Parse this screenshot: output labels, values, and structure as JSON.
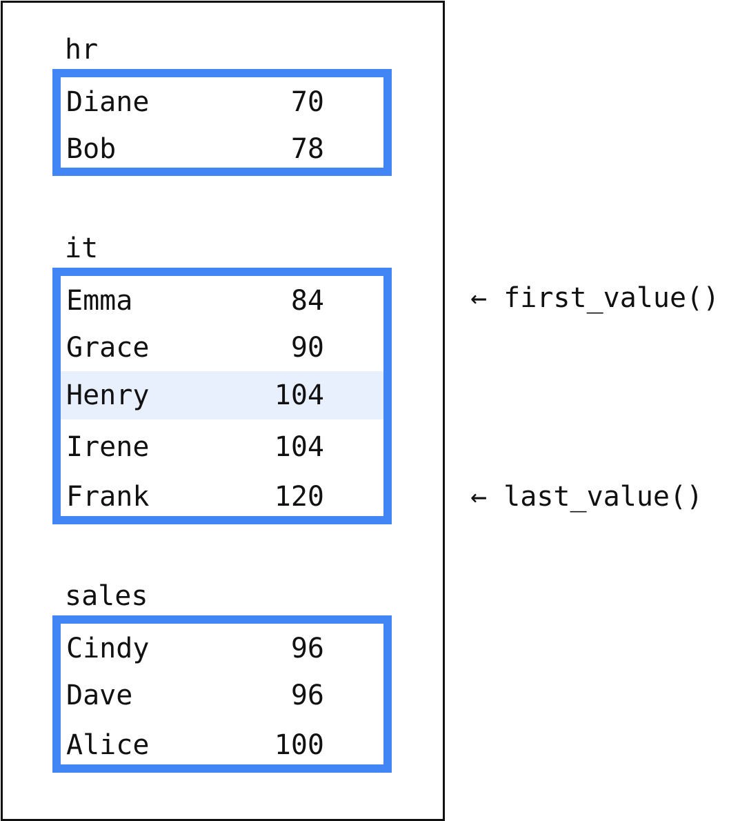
{
  "groups": [
    {
      "label": "hr",
      "rows": [
        {
          "name": "Diane",
          "value": "70"
        },
        {
          "name": "Bob",
          "value": "78"
        }
      ]
    },
    {
      "label": "it",
      "rows": [
        {
          "name": "Emma",
          "value": "84"
        },
        {
          "name": "Grace",
          "value": "90"
        },
        {
          "name": "Henry",
          "value": "104"
        },
        {
          "name": "Irene",
          "value": "104"
        },
        {
          "name": "Frank",
          "value": "120"
        }
      ]
    },
    {
      "label": "sales",
      "rows": [
        {
          "name": "Cindy",
          "value": "96"
        },
        {
          "name": "Dave",
          "value": "96"
        },
        {
          "name": "Alice",
          "value": "100"
        }
      ]
    }
  ],
  "annotations": {
    "first": "← first_value()",
    "last": "← last_value()"
  },
  "colors": {
    "partition_border": "#4285f4",
    "current_row_highlight": "#e8f0fd",
    "frame": "#111111"
  }
}
